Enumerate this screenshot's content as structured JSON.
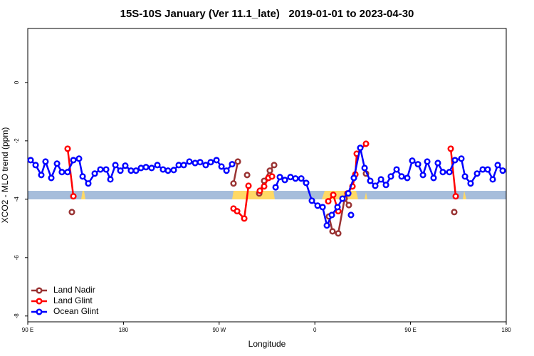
{
  "chart_data": {
    "type": "line",
    "title": "15S-10S January (Ver 11.1_late)   2019-01-01 to 2023-04-30",
    "x_label": "Longitude",
    "y_label": "XCO2 - MLO trend (ppm)",
    "xlim": [
      90,
      540
    ],
    "ylim": [
      -8.2,
      1.85
    ],
    "xticks": [
      {
        "value": 90,
        "label": "90 E"
      },
      {
        "value": 180,
        "label": "180"
      },
      {
        "value": 270,
        "label": "90 W"
      },
      {
        "value": 360,
        "label": "0"
      },
      {
        "value": 450,
        "label": "90 E"
      },
      {
        "value": 540,
        "label": "180"
      }
    ],
    "yticks": [
      0,
      -2,
      -4,
      -6,
      -8
    ],
    "legend": "bottom-left",
    "series": [
      {
        "name": "Land Nadir",
        "color": "#993333",
        "x": [
          131.5,
          null,
          283.5,
          287.6,
          null,
          296.3,
          null,
          307.7,
          312.3,
          317.7,
          321.7,
          null,
          373.3,
          376.6,
          382.0,
          388.0,
          392.0,
          null,
          408.1,
          null,
          491.1
        ],
        "values": [
          -4.44,
          null,
          -3.46,
          -2.71,
          null,
          -3.17,
          null,
          -3.8,
          -3.37,
          -3.02,
          -2.83,
          null,
          -4.59,
          -5.1,
          -5.17,
          -3.98,
          -4.2,
          null,
          -3.12,
          null,
          -4.44
        ]
      },
      {
        "name": "Land Glint",
        "color": "#ff0000",
        "x": [
          127.5,
          132.9,
          null,
          283.5,
          286.9,
          293.6,
          297.6,
          null,
          308.3,
          312.3,
          316.4,
          319.7,
          null,
          372.6,
          377.3,
          382.0,
          null,
          390.7,
          395.4,
          398.1,
          399.4,
          408.1,
          null,
          487.8,
          492.5
        ],
        "values": [
          -2.27,
          -3.9,
          null,
          -4.32,
          -4.41,
          -4.66,
          -3.54,
          null,
          -3.71,
          -3.56,
          -3.27,
          -3.22,
          null,
          -4.07,
          -3.85,
          -4.41,
          null,
          -3.8,
          -3.56,
          -3.15,
          -2.44,
          -2.1,
          null,
          -2.27,
          -3.9
        ]
      },
      {
        "name": "Ocean Glint",
        "color": "#0000ff",
        "x": [
          92.7,
          97.4,
          102.7,
          106.7,
          112.1,
          117.5,
          122.1,
          127.5,
          132.9,
          138.2,
          141.6,
          146.9,
          153.0,
          158.3,
          163.7,
          167.7,
          172.4,
          177.1,
          181.7,
          187.1,
          191.8,
          196.5,
          201.2,
          206.5,
          211.9,
          217.2,
          221.9,
          227.3,
          232.0,
          236.7,
          242.0,
          247.4,
          252.1,
          257.4,
          262.1,
          267.5,
          272.2,
          276.9,
          282.2,
          null,
          323.1,
          327.1,
          331.8,
          337.1,
          341.8,
          347.2,
          351.8,
          357.2,
          362.6,
          367.3,
          371.3,
          376.0,
          381.3,
          386.0,
          391.4,
          396.7,
          402.7,
          406.8,
          412.1,
          416.8,
          422.2,
          426.9,
          431.5,
          436.9,
          441.6,
          446.9,
          451.6,
          457.0,
          461.7,
          465.7,
          471.7,
          475.7,
          480.4,
          486.5,
          491.8,
          497.8,
          501.2,
          506.5,
          512.6,
          517.9,
          522.6,
          527.3,
          532.0,
          536.7,
          null,
          394.0
        ],
        "values": [
          -2.66,
          -2.83,
          -3.17,
          -2.71,
          -3.27,
          -2.78,
          -3.07,
          -3.07,
          -2.66,
          -2.61,
          -3.22,
          -3.46,
          -3.12,
          -2.98,
          -2.98,
          -3.32,
          -2.83,
          -3.02,
          -2.85,
          -3.02,
          -3.02,
          -2.93,
          -2.9,
          -2.93,
          -2.83,
          -2.98,
          -3.02,
          -3.0,
          -2.83,
          -2.83,
          -2.71,
          -2.76,
          -2.73,
          -2.83,
          -2.73,
          -2.66,
          -2.88,
          -3.02,
          -2.8,
          null,
          -3.59,
          -3.24,
          -3.34,
          -3.24,
          -3.29,
          -3.29,
          -3.44,
          -4.05,
          -4.22,
          -4.27,
          -4.9,
          -4.54,
          -4.27,
          -3.98,
          -3.8,
          -3.27,
          -2.24,
          -2.93,
          -3.37,
          -3.54,
          -3.32,
          -3.51,
          -3.22,
          -2.98,
          -3.22,
          -3.27,
          -2.68,
          -2.8,
          -3.17,
          -2.71,
          -3.27,
          -2.76,
          -3.07,
          -3.07,
          -2.66,
          -2.61,
          -3.22,
          -3.46,
          -3.12,
          -2.98,
          -2.98,
          -3.32,
          -2.83,
          -3.02,
          null,
          -4.54
        ]
      }
    ]
  }
}
